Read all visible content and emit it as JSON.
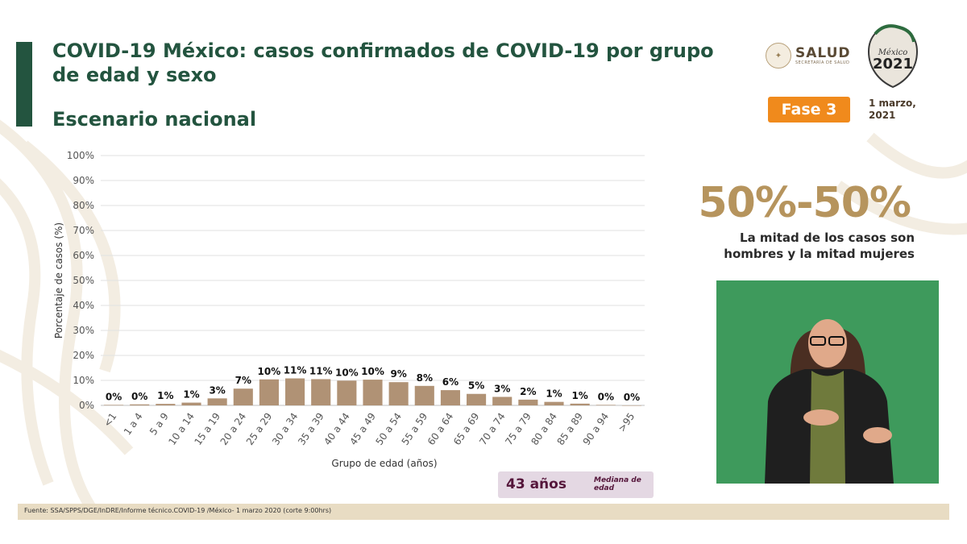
{
  "header": {
    "title": "COVID-19 México: casos confirmados de COVID-19 por grupo de edad y sexo",
    "subtitle": "Escenario nacional",
    "logo_salud": "SALUD",
    "logo_salud_sub": "SECRETARÍA DE SALUD",
    "logo_mexico_year": "2021",
    "logo_mexico_text": "México",
    "phase_badge": "Fase 3",
    "date": "1 marzo, 2021"
  },
  "chart_data": {
    "type": "bar",
    "categories": [
      "<1",
      "1 a 4",
      "5 a 9",
      "10 a 14",
      "15 a 19",
      "20 a 24",
      "25 a 29",
      "30 a 34",
      "35 a 39",
      "40 a 44",
      "45 a 49",
      "50 a 54",
      "55 a 59",
      "60 a 64",
      "65 a 69",
      "70 a 74",
      "75 a 79",
      "80 a 84",
      "85 a 89",
      "90 a 94",
      ">95"
    ],
    "values": [
      0.2,
      0.4,
      0.6,
      1.1,
      2.8,
      6.7,
      10.4,
      10.8,
      10.5,
      9.9,
      10.3,
      9.3,
      7.8,
      6.1,
      4.6,
      3.4,
      2.3,
      1.4,
      0.7,
      0.2,
      0.0
    ],
    "data_labels": [
      "0%",
      "0%",
      "1%",
      "1%",
      "3%",
      "7%",
      "10%",
      "11%",
      "11%",
      "10%",
      "10%",
      "9%",
      "8%",
      "6%",
      "5%",
      "3%",
      "2%",
      "1%",
      "1%",
      "0%",
      "0%"
    ],
    "xlabel": "Grupo de edad (años)",
    "ylabel": "Porcentaje de casos (%)",
    "ylim": [
      0,
      100
    ],
    "yticks": [
      "0%",
      "10%",
      "20%",
      "30%",
      "40%",
      "50%",
      "60%",
      "70%",
      "80%",
      "90%",
      "100%"
    ],
    "grid": true,
    "bar_color": "#b09275"
  },
  "stat": {
    "value": "50%-50%",
    "caption_line1": "La mitad de los casos son",
    "caption_line2": "hombres y la mitad mujeres"
  },
  "median": {
    "value": "43 años",
    "label": "Mediana de edad"
  },
  "footer": {
    "source": "Fuente: SSA/SPPS/DGE/InDRE/Informe técnico.COVID-19 /México- 1 marzo 2020 (corte 9:00hrs)"
  },
  "colors": {
    "title_green": "#23543f",
    "accent_gold": "#b6945d",
    "badge_orange": "#f08a1c",
    "median_purple": "#55163b"
  }
}
